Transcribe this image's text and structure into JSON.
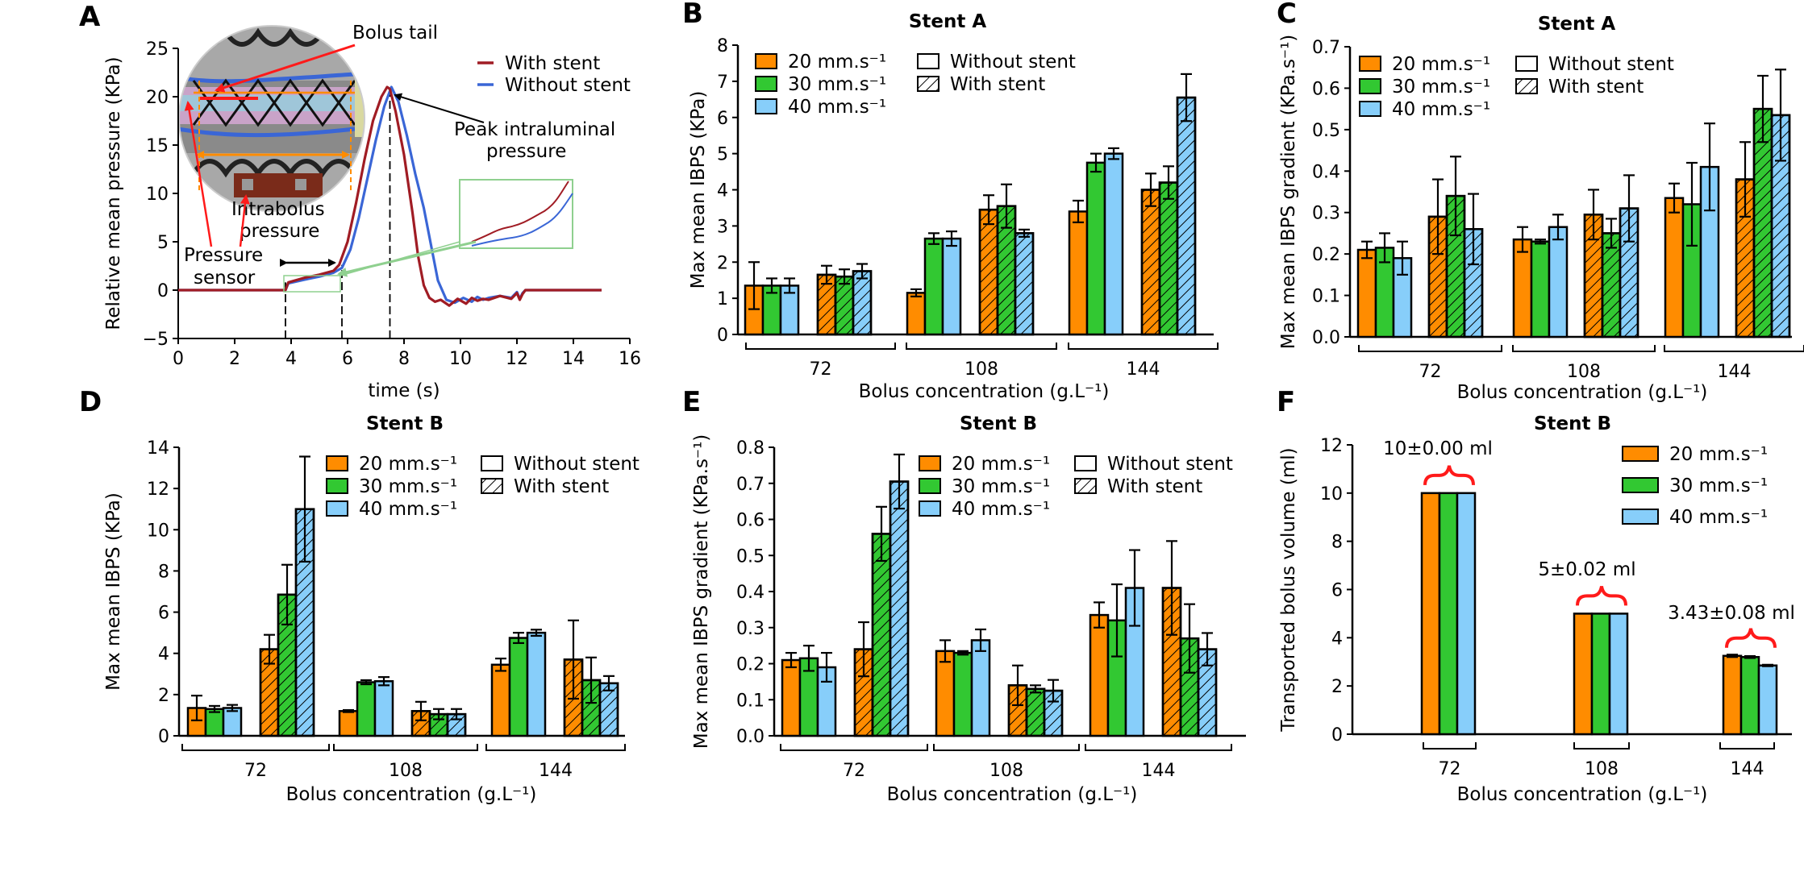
{
  "colors": {
    "s20": "#ff8c00",
    "s30": "#32c832",
    "s40": "#87cefa",
    "with_stent": "#a01c24",
    "without_stent": "#3a66d6"
  },
  "legend_speeds": [
    "20 mm.s⁻¹",
    "30 mm.s⁻¹",
    "40 mm.s⁻¹"
  ],
  "legend_speeds_f": [
    "20 mm.s⁻¹",
    "30 mm.s⁻¹",
    "40 mm.s⁻¹"
  ],
  "legend_stent": [
    "Without stent",
    "With stent"
  ],
  "chart_data": [
    {
      "panel": "A",
      "type": "line",
      "xlabel": "time (s)",
      "ylabel": "Relative mean pressure (KPa)",
      "xlim": [
        0,
        16
      ],
      "ylim": [
        -5,
        25
      ],
      "xticks": [
        0,
        2,
        4,
        6,
        8,
        10,
        12,
        14,
        16
      ],
      "yticks": [
        -5,
        0,
        5,
        10,
        15,
        20,
        25
      ],
      "legend": [
        "With stent",
        "Without stent"
      ],
      "annotations": [
        "Bolus tail",
        "Peak intraluminal pressure",
        "Intrabolus pressure",
        "Pressure sensor"
      ],
      "series": [
        {
          "name": "With stent",
          "x": [
            0,
            3.8,
            3.9,
            4.5,
            5.0,
            5.5,
            5.7,
            6.0,
            6.3,
            6.6,
            6.9,
            7.2,
            7.4,
            7.5,
            7.7,
            8.0,
            8.3,
            8.5,
            8.7,
            8.9,
            9.1,
            9.3,
            9.6,
            9.9,
            10.2,
            10.4,
            10.6,
            10.8,
            11,
            11.4,
            11.8,
            12,
            12.1,
            12.2,
            12.3,
            12.5,
            13,
            14,
            15
          ],
          "y": [
            0,
            0,
            0.8,
            1.3,
            1.6,
            2.0,
            2.6,
            5.0,
            9.0,
            13.5,
            17.5,
            20.0,
            21.0,
            20.8,
            18.5,
            14.0,
            8.0,
            3.5,
            0.5,
            -0.8,
            -1.2,
            -1.0,
            -1.6,
            -0.9,
            -1.4,
            -0.8,
            -1.1,
            -0.9,
            -1.0,
            -0.6,
            -0.9,
            -0.3,
            -1.0,
            -0.4,
            0,
            0,
            0,
            0,
            0
          ]
        },
        {
          "name": "Without stent",
          "x": [
            0,
            3.8,
            3.9,
            4.5,
            5.0,
            5.5,
            5.8,
            6.1,
            6.4,
            6.7,
            7.0,
            7.3,
            7.55,
            7.8,
            8.1,
            8.4,
            8.7,
            9.0,
            9.2,
            9.5,
            9.8,
            10.1,
            10.4,
            10.6,
            10.8,
            11,
            11.4,
            11.8,
            12,
            12.1,
            12.2,
            12.3,
            12.5,
            13,
            14,
            15
          ],
          "y": [
            0,
            0,
            0.7,
            1.1,
            1.4,
            1.8,
            2.3,
            4.2,
            7.5,
            11.5,
            15.5,
            19.0,
            21.0,
            19.5,
            16.0,
            12.0,
            8.5,
            4.0,
            1.0,
            -1.0,
            -1.3,
            -0.8,
            -1.2,
            -0.7,
            -1.0,
            -0.8,
            -0.6,
            -0.8,
            -0.2,
            -0.9,
            -0.3,
            0,
            0,
            0,
            0,
            0
          ]
        }
      ]
    },
    {
      "panel": "B",
      "type": "bar",
      "title": "Stent A",
      "xlabel": "Bolus concentration (g.L⁻¹)",
      "ylabel": "Max mean IBPS (KPa)",
      "categories": [
        "72",
        "108",
        "144"
      ],
      "ylim": [
        0,
        8
      ],
      "yticks": [
        0,
        1,
        2,
        3,
        4,
        5,
        6,
        7,
        8
      ],
      "series": [
        {
          "name": "20 mm.s⁻¹",
          "stent": "Without stent",
          "values": [
            1.35,
            1.15,
            3.4
          ],
          "err": [
            0.65,
            0.1,
            0.3
          ]
        },
        {
          "name": "30 mm.s⁻¹",
          "stent": "Without stent",
          "values": [
            1.35,
            2.65,
            4.75
          ],
          "err": [
            0.2,
            0.15,
            0.25
          ]
        },
        {
          "name": "40 mm.s⁻¹",
          "stent": "Without stent",
          "values": [
            1.35,
            2.65,
            5.0
          ],
          "err": [
            0.2,
            0.2,
            0.15
          ]
        },
        {
          "name": "20 mm.s⁻¹",
          "stent": "With stent",
          "values": [
            1.65,
            3.45,
            4.0
          ],
          "err": [
            0.25,
            0.4,
            0.45
          ]
        },
        {
          "name": "30 mm.s⁻¹",
          "stent": "With stent",
          "values": [
            1.6,
            3.55,
            4.2
          ],
          "err": [
            0.2,
            0.6,
            0.45
          ]
        },
        {
          "name": "40 mm.s⁻¹",
          "stent": "With stent",
          "values": [
            1.75,
            2.8,
            6.55
          ],
          "err": [
            0.2,
            0.1,
            0.65
          ]
        }
      ]
    },
    {
      "panel": "C",
      "type": "bar",
      "title": "Stent A",
      "xlabel": "Bolus concentration (g.L⁻¹)",
      "ylabel": "Max mean IBPS gradient (KPa.s⁻¹)",
      "categories": [
        "72",
        "108",
        "144"
      ],
      "ylim": [
        0,
        0.7
      ],
      "yticks": [
        0.0,
        0.1,
        0.2,
        0.3,
        0.4,
        0.5,
        0.6,
        0.7
      ],
      "series": [
        {
          "name": "20 mm.s⁻¹",
          "stent": "Without stent",
          "values": [
            0.21,
            0.235,
            0.335
          ],
          "err": [
            0.02,
            0.03,
            0.035
          ]
        },
        {
          "name": "30 mm.s⁻¹",
          "stent": "Without stent",
          "values": [
            0.215,
            0.23,
            0.32
          ],
          "err": [
            0.035,
            0.005,
            0.1
          ]
        },
        {
          "name": "40 mm.s⁻¹",
          "stent": "Without stent",
          "values": [
            0.19,
            0.265,
            0.41
          ],
          "err": [
            0.04,
            0.03,
            0.105
          ]
        },
        {
          "name": "20 mm.s⁻¹",
          "stent": "With stent",
          "values": [
            0.29,
            0.295,
            0.38
          ],
          "err": [
            0.09,
            0.06,
            0.09
          ]
        },
        {
          "name": "30 mm.s⁻¹",
          "stent": "With stent",
          "values": [
            0.34,
            0.25,
            0.55
          ],
          "err": [
            0.095,
            0.035,
            0.08
          ]
        },
        {
          "name": "40 mm.s⁻¹",
          "stent": "With stent",
          "values": [
            0.26,
            0.31,
            0.535
          ],
          "err": [
            0.085,
            0.08,
            0.11
          ]
        }
      ]
    },
    {
      "panel": "D",
      "type": "bar",
      "title": "Stent B",
      "xlabel": "Bolus concentration (g.L⁻¹)",
      "ylabel": "Max mean IBPS (KPa)",
      "categories": [
        "72",
        "108",
        "144"
      ],
      "ylim": [
        0,
        14
      ],
      "yticks": [
        0,
        2,
        4,
        6,
        8,
        10,
        12,
        14
      ],
      "series": [
        {
          "name": "20 mm.s⁻¹",
          "stent": "Without stent",
          "values": [
            1.35,
            1.2,
            3.45
          ],
          "err": [
            0.6,
            0.05,
            0.3
          ]
        },
        {
          "name": "30 mm.s⁻¹",
          "stent": "Without stent",
          "values": [
            1.3,
            2.6,
            4.75
          ],
          "err": [
            0.15,
            0.1,
            0.25
          ]
        },
        {
          "name": "40 mm.s⁻¹",
          "stent": "Without stent",
          "values": [
            1.35,
            2.65,
            5.0
          ],
          "err": [
            0.15,
            0.2,
            0.15
          ]
        },
        {
          "name": "20 mm.s⁻¹",
          "stent": "With stent",
          "values": [
            4.2,
            1.2,
            3.7
          ],
          "err": [
            0.7,
            0.45,
            1.9
          ]
        },
        {
          "name": "30 mm.s⁻¹",
          "stent": "With stent",
          "values": [
            6.85,
            1.05,
            2.7
          ],
          "err": [
            1.45,
            0.25,
            1.1
          ]
        },
        {
          "name": "40 mm.s⁻¹",
          "stent": "With stent",
          "values": [
            11.0,
            1.05,
            2.55
          ],
          "err": [
            2.55,
            0.25,
            0.35
          ]
        }
      ]
    },
    {
      "panel": "E",
      "type": "bar",
      "title": "Stent B",
      "xlabel": "Bolus concentration (g.L⁻¹)",
      "ylabel": "Max mean IBPS gradient (KPa.s⁻¹)",
      "categories": [
        "72",
        "108",
        "144"
      ],
      "ylim": [
        0,
        0.8
      ],
      "yticks": [
        0.0,
        0.1,
        0.2,
        0.3,
        0.4,
        0.5,
        0.6,
        0.7,
        0.8
      ],
      "series": [
        {
          "name": "20 mm.s⁻¹",
          "stent": "Without stent",
          "values": [
            0.21,
            0.235,
            0.335
          ],
          "err": [
            0.02,
            0.03,
            0.035
          ]
        },
        {
          "name": "30 mm.s⁻¹",
          "stent": "Without stent",
          "values": [
            0.215,
            0.23,
            0.32
          ],
          "err": [
            0.035,
            0.005,
            0.1
          ]
        },
        {
          "name": "40 mm.s⁻¹",
          "stent": "Without stent",
          "values": [
            0.19,
            0.265,
            0.41
          ],
          "err": [
            0.04,
            0.03,
            0.105
          ]
        },
        {
          "name": "20 mm.s⁻¹",
          "stent": "With stent",
          "values": [
            0.24,
            0.14,
            0.41
          ],
          "err": [
            0.075,
            0.055,
            0.13
          ]
        },
        {
          "name": "30 mm.s⁻¹",
          "stent": "With stent",
          "values": [
            0.56,
            0.13,
            0.27
          ],
          "err": [
            0.075,
            0.01,
            0.095
          ]
        },
        {
          "name": "40 mm.s⁻¹",
          "stent": "With stent",
          "values": [
            0.705,
            0.125,
            0.24
          ],
          "err": [
            0.075,
            0.03,
            0.045
          ]
        }
      ]
    },
    {
      "panel": "F",
      "type": "bar",
      "title": "Stent B",
      "xlabel": "Bolus concentration (g.L⁻¹)",
      "ylabel": "Transported bolus volume (ml)",
      "categories": [
        "72",
        "108",
        "144"
      ],
      "ylim": [
        0,
        12
      ],
      "yticks": [
        0,
        2,
        4,
        6,
        8,
        10,
        12
      ],
      "series": [
        {
          "name": "20 mm.s⁻¹",
          "values": [
            10,
            5,
            3.25
          ],
          "err": [
            0,
            0,
            0.05
          ]
        },
        {
          "name": "30 mm.s⁻¹",
          "values": [
            10,
            5,
            3.2
          ],
          "err": [
            0,
            0,
            0.04
          ]
        },
        {
          "name": "40 mm.s⁻¹",
          "values": [
            10,
            5,
            2.85
          ],
          "err": [
            0,
            0,
            0.03
          ]
        }
      ],
      "annotations": [
        "10±0.00 ml",
        "5±0.02 ml",
        "3.43±0.08 ml"
      ]
    }
  ]
}
